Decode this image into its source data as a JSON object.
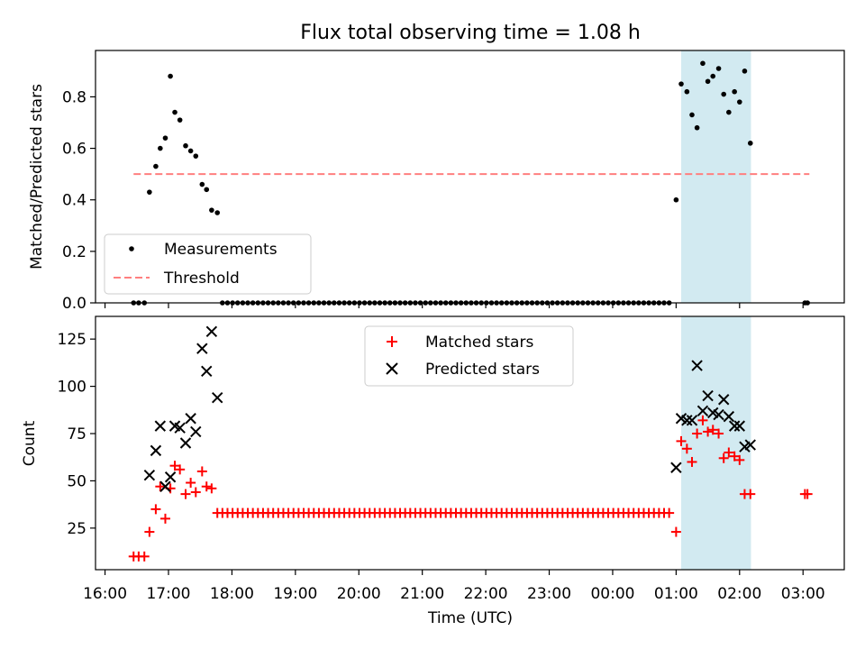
{
  "chart_data": [
    {
      "type": "scatter",
      "title": "Flux total observing time = 1.08 h",
      "xlabel": "",
      "ylabel": "Matched/Predicted stars",
      "xlim": [
        -0.15,
        11.65
      ],
      "ylim": [
        0,
        0.98
      ],
      "yticks": [
        0.0,
        0.2,
        0.4,
        0.6,
        0.8
      ],
      "ytick_labels": [
        "0.0",
        "0.2",
        "0.4",
        "0.6",
        "0.8"
      ],
      "x_unit": "hours after 16:00 UTC",
      "highlight_span": [
        9.08,
        10.18
      ],
      "highlight_color": "#add8e6",
      "legend_position": "lower left",
      "series": [
        {
          "name": "Measurements",
          "marker": "dot",
          "color": "#000000",
          "x": [
            0.45,
            0.53,
            0.62,
            0.7,
            0.8,
            0.87,
            0.95,
            1.03,
            1.1,
            1.18,
            1.27,
            1.35,
            1.43,
            1.53,
            1.6,
            1.68,
            1.77,
            1.85,
            1.93,
            2.01,
            2.09,
            2.17,
            2.25,
            2.33,
            2.41,
            2.49,
            2.57,
            2.65,
            2.73,
            2.81,
            2.89,
            2.97,
            3.05,
            3.13,
            3.21,
            3.29,
            3.37,
            3.45,
            3.53,
            3.61,
            3.69,
            3.77,
            3.85,
            3.93,
            4.01,
            4.09,
            4.17,
            4.25,
            4.33,
            4.41,
            4.49,
            4.57,
            4.65,
            4.73,
            4.81,
            4.89,
            4.97,
            5.05,
            5.13,
            5.21,
            5.29,
            5.37,
            5.45,
            5.53,
            5.61,
            5.69,
            5.77,
            5.85,
            5.93,
            6.01,
            6.09,
            6.17,
            6.25,
            6.33,
            6.41,
            6.49,
            6.57,
            6.65,
            6.73,
            6.81,
            6.89,
            6.97,
            7.05,
            7.13,
            7.21,
            7.29,
            7.37,
            7.45,
            7.53,
            7.61,
            7.69,
            7.77,
            7.85,
            7.93,
            8.01,
            8.09,
            8.17,
            8.25,
            8.33,
            8.41,
            8.49,
            8.57,
            8.65,
            8.73,
            8.81,
            8.89,
            9.0,
            9.08,
            9.17,
            9.25,
            9.33,
            9.42,
            9.5,
            9.58,
            9.67,
            9.75,
            9.83,
            9.92,
            10.0,
            10.08,
            10.17,
            11.03,
            11.07
          ],
          "y": [
            0,
            0,
            0,
            0.43,
            0.53,
            0.6,
            0.64,
            0.88,
            0.74,
            0.71,
            0.61,
            0.59,
            0.57,
            0.46,
            0.44,
            0.36,
            0.35,
            0,
            0,
            0,
            0,
            0,
            0,
            0,
            0,
            0,
            0,
            0,
            0,
            0,
            0,
            0,
            0,
            0,
            0,
            0,
            0,
            0,
            0,
            0,
            0,
            0,
            0,
            0,
            0,
            0,
            0,
            0,
            0,
            0,
            0,
            0,
            0,
            0,
            0,
            0,
            0,
            0,
            0,
            0,
            0,
            0,
            0,
            0,
            0,
            0,
            0,
            0,
            0,
            0,
            0,
            0,
            0,
            0,
            0,
            0,
            0,
            0,
            0,
            0,
            0,
            0,
            0,
            0,
            0,
            0,
            0,
            0,
            0,
            0,
            0,
            0,
            0,
            0,
            0,
            0,
            0,
            0,
            0,
            0,
            0,
            0,
            0,
            0,
            0,
            0,
            0.4,
            0.85,
            0.82,
            0.73,
            0.68,
            0.93,
            0.86,
            0.88,
            0.91,
            0.81,
            0.74,
            0.82,
            0.78,
            0.9,
            0.62,
            0,
            0
          ]
        },
        {
          "name": "Threshold",
          "kind": "dashed-line",
          "color": "#ff7f7f",
          "x": [
            0.45,
            11.1
          ],
          "y": [
            0.5,
            0.5
          ]
        }
      ]
    },
    {
      "type": "scatter",
      "title": "",
      "xlabel": "Time (UTC)",
      "ylabel": "Count",
      "xlim": [
        -0.15,
        11.65
      ],
      "ylim": [
        3,
        137
      ],
      "yticks": [
        25,
        50,
        75,
        100,
        125
      ],
      "ytick_labels": [
        "25",
        "50",
        "75",
        "100",
        "125"
      ],
      "xticks": [
        0,
        1,
        2,
        3,
        4,
        5,
        6,
        7,
        8,
        9,
        10,
        11
      ],
      "xtick_labels": [
        "16:00",
        "17:00",
        "18:00",
        "19:00",
        "20:00",
        "21:00",
        "22:00",
        "23:00",
        "00:00",
        "01:00",
        "02:00",
        "03:00"
      ],
      "x_unit": "hours after 16:00 UTC",
      "highlight_span": [
        9.08,
        10.18
      ],
      "highlight_color": "#add8e6",
      "legend_position": "upper center",
      "series": [
        {
          "name": "Matched stars",
          "marker": "plus",
          "color": "#ff0000",
          "x": [
            0.45,
            0.53,
            0.62,
            0.7,
            0.8,
            0.87,
            0.95,
            1.03,
            1.1,
            1.18,
            1.27,
            1.35,
            1.43,
            1.53,
            1.6,
            1.68,
            1.77,
            1.85,
            1.93,
            2.01,
            2.09,
            2.17,
            2.25,
            2.33,
            2.41,
            2.49,
            2.57,
            2.65,
            2.73,
            2.81,
            2.89,
            2.97,
            3.05,
            3.13,
            3.21,
            3.29,
            3.37,
            3.45,
            3.53,
            3.61,
            3.69,
            3.77,
            3.85,
            3.93,
            4.01,
            4.09,
            4.17,
            4.25,
            4.33,
            4.41,
            4.49,
            4.57,
            4.65,
            4.73,
            4.81,
            4.89,
            4.97,
            5.05,
            5.13,
            5.21,
            5.29,
            5.37,
            5.45,
            5.53,
            5.61,
            5.69,
            5.77,
            5.85,
            5.93,
            6.01,
            6.09,
            6.17,
            6.25,
            6.33,
            6.41,
            6.49,
            6.57,
            6.65,
            6.73,
            6.81,
            6.89,
            6.97,
            7.05,
            7.13,
            7.21,
            7.29,
            7.37,
            7.45,
            7.53,
            7.61,
            7.69,
            7.77,
            7.85,
            7.93,
            8.01,
            8.09,
            8.17,
            8.25,
            8.33,
            8.41,
            8.49,
            8.57,
            8.65,
            8.73,
            8.81,
            8.89,
            9.0,
            9.08,
            9.17,
            9.25,
            9.33,
            9.42,
            9.5,
            9.58,
            9.67,
            9.75,
            9.83,
            9.92,
            10.0,
            10.08,
            10.17,
            11.03,
            11.07
          ],
          "y": [
            10,
            10,
            10,
            23,
            35,
            47,
            30,
            46,
            58,
            56,
            43,
            49,
            44,
            55,
            47,
            46,
            33,
            33,
            33,
            33,
            33,
            33,
            33,
            33,
            33,
            33,
            33,
            33,
            33,
            33,
            33,
            33,
            33,
            33,
            33,
            33,
            33,
            33,
            33,
            33,
            33,
            33,
            33,
            33,
            33,
            33,
            33,
            33,
            33,
            33,
            33,
            33,
            33,
            33,
            33,
            33,
            33,
            33,
            33,
            33,
            33,
            33,
            33,
            33,
            33,
            33,
            33,
            33,
            33,
            33,
            33,
            33,
            33,
            33,
            33,
            33,
            33,
            33,
            33,
            33,
            33,
            33,
            33,
            33,
            33,
            33,
            33,
            33,
            33,
            33,
            33,
            33,
            33,
            33,
            33,
            33,
            33,
            33,
            33,
            33,
            33,
            33,
            33,
            33,
            33,
            33,
            23,
            71,
            67,
            60,
            75,
            82,
            76,
            77,
            75,
            62,
            65,
            63,
            61,
            43,
            43,
            43,
            43
          ]
        },
        {
          "name": "Predicted stars",
          "marker": "x",
          "color": "#000000",
          "x": [
            0.7,
            0.8,
            0.87,
            0.95,
            1.03,
            1.1,
            1.18,
            1.27,
            1.35,
            1.43,
            1.53,
            1.6,
            1.68,
            1.77,
            9.0,
            9.08,
            9.17,
            9.25,
            9.33,
            9.42,
            9.5,
            9.58,
            9.67,
            9.75,
            9.83,
            9.92,
            10.0,
            10.08,
            10.17
          ],
          "y": [
            53,
            66,
            79,
            47,
            52,
            79,
            78,
            70,
            83,
            76,
            120,
            108,
            129,
            94,
            57,
            83,
            82,
            82,
            111,
            87,
            95,
            86,
            85,
            93,
            84,
            79,
            79,
            68,
            69
          ]
        }
      ]
    }
  ]
}
